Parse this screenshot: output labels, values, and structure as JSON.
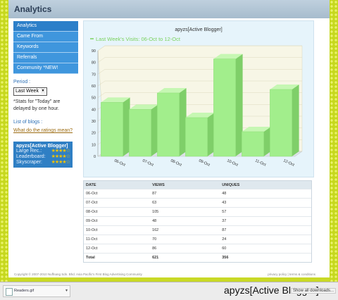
{
  "header": {
    "title": "Analytics"
  },
  "sidebar": {
    "items": [
      {
        "label": "Analytics"
      },
      {
        "label": "Came From"
      },
      {
        "label": "Keywords"
      },
      {
        "label": "Referrals"
      },
      {
        "label": "Community *NEW!"
      }
    ],
    "period_label": "Period :",
    "period_value": "Last Week",
    "stats_note": "*Stats for \"Today\" are delayed by one hour.",
    "blogs_label": "List of blogs :",
    "ratings_link": "What do the ratings mean?",
    "blog": {
      "name": "apyzs[Active Blogger]",
      "ratings": [
        {
          "label": "Large Rec.:",
          "stars": "★★★★☆"
        },
        {
          "label": "Leaderboard:",
          "stars": "★★★★☆"
        },
        {
          "label": "Skyscraper:",
          "stars": "★★★★☆"
        }
      ]
    }
  },
  "chart_data": {
    "type": "bar",
    "title": "apyzs[Active Blogger]",
    "series_label": "Last Week's Visits: 06-Oct to 12-Oct",
    "categories": [
      "06-Oct",
      "07-Oct",
      "08-Oct",
      "09-Oct",
      "10-Oct",
      "11-Oct",
      "12-Oct"
    ],
    "values": [
      46,
      40,
      54,
      33,
      83,
      21,
      57
    ],
    "ylim": [
      0,
      90
    ],
    "yticks": [
      0,
      10,
      20,
      30,
      40,
      50,
      60,
      70,
      80,
      90
    ],
    "colors": {
      "bar": "#a2ee8c",
      "bar_top": "#c6f7b3",
      "bar_side": "#7fcf69",
      "series": "#7ad25e"
    }
  },
  "table": {
    "headers": [
      "DATE",
      "VIEWS",
      "UNIQUES"
    ],
    "rows": [
      [
        "06-Oct",
        "87",
        "48"
      ],
      [
        "07-Oct",
        "63",
        "43"
      ],
      [
        "08-Oct",
        "105",
        "57"
      ],
      [
        "09-Oct",
        "48",
        "37"
      ],
      [
        "10-Oct",
        "162",
        "87"
      ],
      [
        "11-Oct",
        "70",
        "24"
      ],
      [
        "12-Oct",
        "86",
        "60"
      ]
    ],
    "total": [
      "Total",
      "621",
      "356"
    ]
  },
  "footer": {
    "copyright": "Copyright © 2007-2010 Nuffnang Sdn. Bhd. Asia Pacific's First Blog Advertising Community",
    "links": "privacy policy | terms & conditions"
  },
  "download_bar": {
    "file_name": "Readers.gif",
    "status_text": "apyzs[Active Blogger]",
    "show_all": "Show all downloads..."
  }
}
